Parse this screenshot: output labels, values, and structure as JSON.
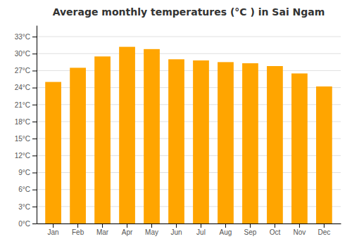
{
  "chart_data": {
    "type": "bar",
    "title": "Average monthly temperatures (°C ) in Sai Ngam",
    "categories": [
      "Jan",
      "Feb",
      "Mar",
      "Apr",
      "May",
      "Jun",
      "Jul",
      "Aug",
      "Sep",
      "Oct",
      "Nov",
      "Dec"
    ],
    "values": [
      25.0,
      27.5,
      29.5,
      31.2,
      30.8,
      29.0,
      28.8,
      28.5,
      28.3,
      27.8,
      26.5,
      24.2
    ],
    "color": "#FFA500",
    "ylim": [
      0,
      35
    ],
    "yticks": [
      {
        "value": 0,
        "label": "0°C"
      },
      {
        "value": 3,
        "label": "3°C"
      },
      {
        "value": 6,
        "label": "6°C"
      },
      {
        "value": 9,
        "label": "9°C"
      },
      {
        "value": 12,
        "label": "12°C"
      },
      {
        "value": 15,
        "label": "15°C"
      },
      {
        "value": 18,
        "label": "18°C"
      },
      {
        "value": 21,
        "label": "21°C"
      },
      {
        "value": 24,
        "label": "24°C"
      },
      {
        "value": 27,
        "label": "27°C"
      },
      {
        "value": 30,
        "label": "30°C"
      },
      {
        "value": 33,
        "label": "33°C"
      }
    ],
    "grid": true
  }
}
